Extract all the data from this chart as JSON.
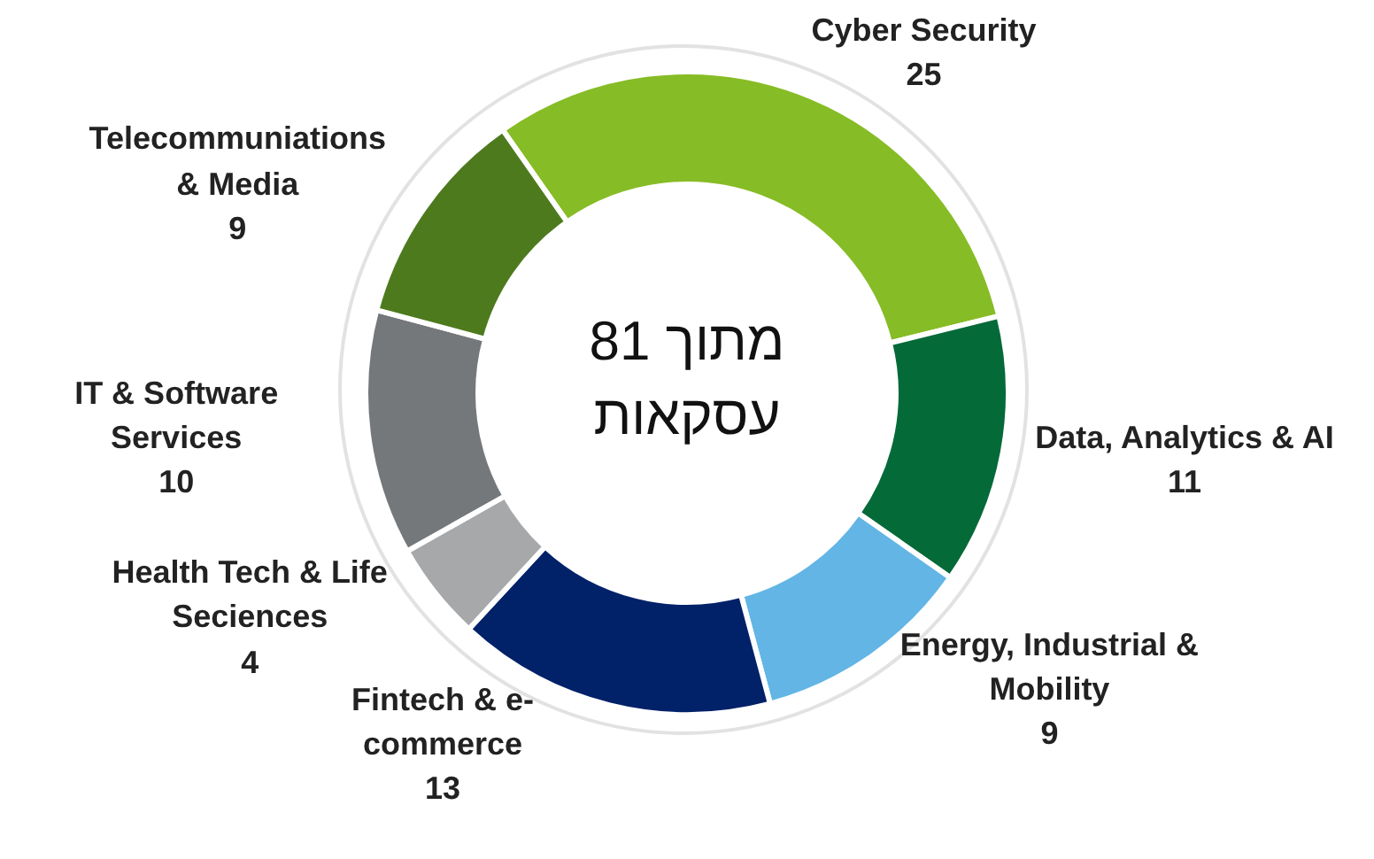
{
  "chart_data": {
    "type": "donut",
    "title": "מתוך 81 עסקאות",
    "categories": [
      "Cyber Security",
      "Data, Analytics & AI",
      "Energy, Industrial & Mobility",
      "Fintech & e-commerce",
      "Health Tech & Life Seciences",
      "IT & Software Services",
      "Telecommuniations & Media"
    ],
    "values": [
      25,
      11,
      9,
      13,
      4,
      10,
      9
    ],
    "colors": [
      "#86bc25",
      "#046a38",
      "#62b5e5",
      "#012169",
      "#a7a8aa",
      "#75787b",
      "#4e7a1e"
    ],
    "data_labels": true,
    "legend": false
  }
}
